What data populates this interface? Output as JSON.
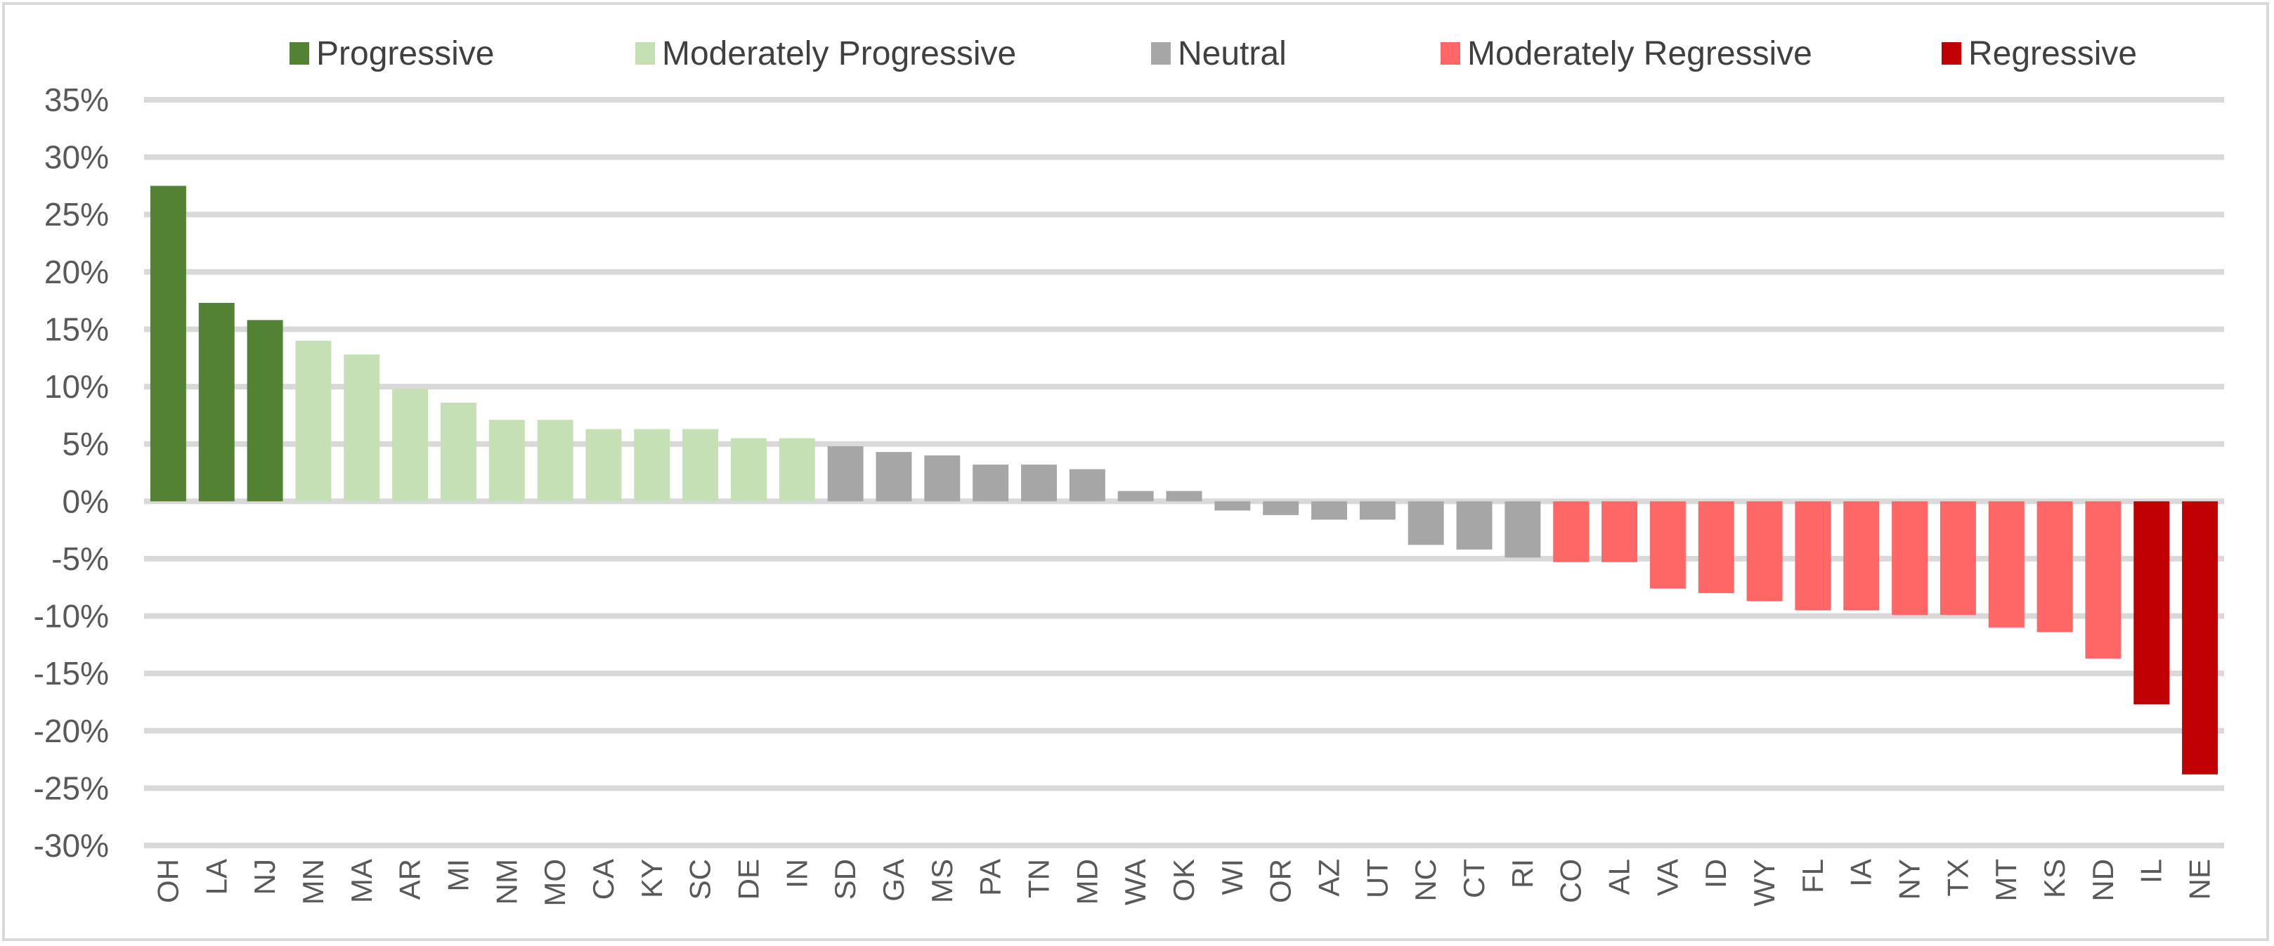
{
  "chart_data": {
    "type": "bar",
    "title": "",
    "xlabel": "",
    "ylabel": "",
    "ylim": [
      -30,
      35
    ],
    "y_ticks": [
      35,
      30,
      25,
      20,
      15,
      10,
      5,
      0,
      -5,
      -10,
      -15,
      -20,
      -25,
      -30
    ],
    "y_tick_labels": [
      "35%",
      "30%",
      "25%",
      "20%",
      "15%",
      "10%",
      "5%",
      "0%",
      "-5%",
      "-10%",
      "-15%",
      "-20%",
      "-25%",
      "-30%"
    ],
    "grid": true,
    "legend_position": "top",
    "legend": [
      {
        "key": "P",
        "label": "Progressive",
        "color": "#548235"
      },
      {
        "key": "MP",
        "label": "Moderately Progressive",
        "color": "#c5e0b4"
      },
      {
        "key": "N",
        "label": "Neutral",
        "color": "#a6a6a6"
      },
      {
        "key": "MR",
        "label": "Moderately Regressive",
        "color": "#ff6666"
      },
      {
        "key": "R",
        "label": "Regressive",
        "color": "#c00000"
      }
    ],
    "categories": [
      "OH",
      "LA",
      "NJ",
      "MN",
      "MA",
      "AR",
      "MI",
      "NM",
      "MO",
      "CA",
      "KY",
      "SC",
      "DE",
      "IN",
      "SD",
      "GA",
      "MS",
      "PA",
      "TN",
      "MD",
      "WA",
      "OK",
      "WI",
      "OR",
      "AZ",
      "UT",
      "NC",
      "CT",
      "RI",
      "CO",
      "AL",
      "VA",
      "ID",
      "WY",
      "FL",
      "IA",
      "NY",
      "TX",
      "MT",
      "KS",
      "ND",
      "IL",
      "NE"
    ],
    "values": [
      27.5,
      17.3,
      15.8,
      14.0,
      12.8,
      9.8,
      8.6,
      7.1,
      7.1,
      6.3,
      6.3,
      6.3,
      5.5,
      5.5,
      4.8,
      4.3,
      4.0,
      3.2,
      3.2,
      2.8,
      0.9,
      0.9,
      -0.8,
      -1.2,
      -1.6,
      -1.6,
      -3.8,
      -4.2,
      -4.9,
      -5.3,
      -5.3,
      -7.6,
      -8.0,
      -8.7,
      -9.5,
      -9.5,
      -9.9,
      -9.9,
      -11.0,
      -11.4,
      -13.7,
      -17.7,
      -23.8
    ],
    "groups": [
      "P",
      "P",
      "P",
      "MP",
      "MP",
      "MP",
      "MP",
      "MP",
      "MP",
      "MP",
      "MP",
      "MP",
      "MP",
      "MP",
      "N",
      "N",
      "N",
      "N",
      "N",
      "N",
      "N",
      "N",
      "N",
      "N",
      "N",
      "N",
      "N",
      "N",
      "N",
      "MR",
      "MR",
      "MR",
      "MR",
      "MR",
      "MR",
      "MR",
      "MR",
      "MR",
      "MR",
      "MR",
      "MR",
      "R",
      "R"
    ],
    "colors": {
      "gridline": "#d9d9d9",
      "axis_text": "#595959"
    }
  }
}
